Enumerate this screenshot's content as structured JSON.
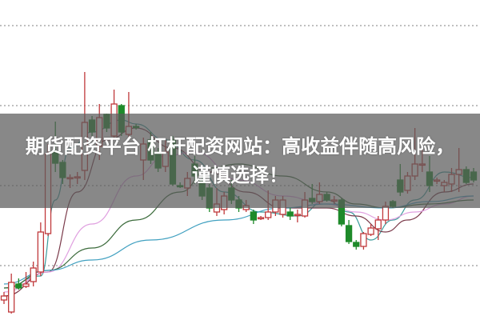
{
  "headline": {
    "line1": "期货配资平台 杠杆配资网站：高收益伴随高风险，",
    "line2": "谨慎选择！"
  },
  "chart_data": {
    "type": "candlestick",
    "title": "",
    "xlabel": "",
    "ylabel": "",
    "ylim": [
      0,
      400
    ],
    "grid": true,
    "gridlines": [
      68,
      168,
      268,
      368
    ],
    "colors": {
      "up": "#c0393b",
      "down": "#1e8a2a",
      "grid": "#999999"
    },
    "candles": [
      [
        25,
        30,
        35,
        20
      ],
      [
        10,
        47,
        58,
        8
      ],
      [
        45,
        40,
        52,
        38
      ],
      [
        42,
        45,
        60,
        40
      ],
      [
        48,
        65,
        73,
        42
      ],
      [
        60,
        110,
        122,
        55
      ],
      [
        108,
        208,
        220,
        105
      ],
      [
        210,
        196,
        248,
        185
      ],
      [
        197,
        178,
        200,
        170
      ],
      [
        178,
        178,
        182,
        165
      ],
      [
        178,
        179,
        185,
        170
      ],
      [
        187,
        247,
        310,
        175
      ],
      [
        250,
        235,
        255,
        230
      ],
      [
        217,
        253,
        270,
        200
      ],
      [
        257,
        240,
        258,
        235
      ],
      [
        230,
        270,
        288,
        225
      ],
      [
        268,
        235,
        270,
        230
      ],
      [
        232,
        242,
        285,
        225
      ],
      [
        242,
        241,
        245,
        238
      ],
      [
        200,
        220,
        228,
        175
      ],
      [
        225,
        200,
        235,
        195
      ],
      [
        210,
        190,
        215,
        185
      ],
      [
        192,
        210,
        225,
        185
      ],
      [
        225,
        170,
        230,
        168
      ],
      [
        168,
        167,
        172,
        165
      ],
      [
        165,
        177,
        185,
        155
      ],
      [
        195,
        180,
        205,
        170
      ],
      [
        175,
        155,
        180,
        150
      ],
      [
        165,
        140,
        170,
        135
      ],
      [
        135,
        145,
        165,
        130
      ],
      [
        138,
        155,
        160,
        132
      ],
      [
        165,
        150,
        175,
        145
      ],
      [
        150,
        140,
        155,
        135
      ],
      [
        138,
        143,
        150,
        135
      ],
      [
        135,
        125,
        138,
        120
      ],
      [
        128,
        128,
        130,
        125
      ],
      [
        128,
        135,
        162,
        125
      ],
      [
        135,
        150,
        155,
        130
      ],
      [
        132,
        150,
        155,
        128
      ],
      [
        135,
        130,
        140,
        125
      ],
      [
        132,
        132,
        138,
        122
      ],
      [
        130,
        150,
        160,
        128
      ],
      [
        152,
        148,
        170,
        145
      ],
      [
        148,
        157,
        172,
        145
      ],
      [
        157,
        150,
        160,
        148
      ],
      [
        150,
        150,
        155,
        145
      ],
      [
        150,
        120,
        152,
        117
      ],
      [
        118,
        98,
        125,
        95
      ],
      [
        97,
        92,
        100,
        88
      ],
      [
        92,
        108,
        110,
        88
      ],
      [
        107,
        115,
        120,
        105
      ],
      [
        114,
        125,
        130,
        100
      ],
      [
        125,
        142,
        148,
        120
      ],
      [
        148,
        142,
        150,
        140
      ],
      [
        175,
        160,
        195,
        155
      ],
      [
        162,
        180,
        185,
        158
      ],
      [
        180,
        195,
        240,
        175
      ],
      [
        195,
        195,
        220,
        185
      ],
      [
        185,
        168,
        205,
        160
      ],
      [
        175,
        175,
        178,
        170
      ],
      [
        168,
        172,
        175,
        160
      ],
      [
        170,
        182,
        190,
        160
      ],
      [
        182,
        188,
        215,
        160
      ],
      [
        188,
        172,
        192,
        170
      ],
      [
        185,
        175,
        190,
        172
      ]
    ],
    "candle_fields": [
      "open",
      "close",
      "high",
      "low"
    ],
    "moving_averages": [
      {
        "color": "#3a9a9a",
        "points": [
          [
            0,
            40
          ],
          [
            5,
            55
          ],
          [
            7,
            150
          ],
          [
            9,
            215
          ],
          [
            12,
            235
          ],
          [
            16,
            250
          ],
          [
            18,
            245
          ],
          [
            22,
            225
          ],
          [
            26,
            200
          ],
          [
            30,
            160
          ],
          [
            35,
            135
          ],
          [
            40,
            130
          ],
          [
            44,
            150
          ],
          [
            47,
            135
          ],
          [
            50,
            100
          ],
          [
            53,
            125
          ],
          [
            56,
            150
          ],
          [
            60,
            185
          ],
          [
            64,
            178
          ]
        ]
      },
      {
        "color": "#7a3a4a",
        "points": [
          [
            0,
            30
          ],
          [
            6,
            60
          ],
          [
            10,
            160
          ],
          [
            14,
            225
          ],
          [
            18,
            240
          ],
          [
            23,
            215
          ],
          [
            28,
            185
          ],
          [
            33,
            160
          ],
          [
            38,
            140
          ],
          [
            44,
            140
          ],
          [
            48,
            130
          ],
          [
            52,
            110
          ],
          [
            55,
            125
          ],
          [
            60,
            160
          ],
          [
            64,
            170
          ]
        ]
      },
      {
        "color": "#e0a0e0",
        "points": [
          [
            0,
            35
          ],
          [
            6,
            60
          ],
          [
            12,
            120
          ],
          [
            18,
            180
          ],
          [
            22,
            205
          ],
          [
            26,
            210
          ],
          [
            32,
            175
          ],
          [
            38,
            155
          ],
          [
            44,
            145
          ],
          [
            48,
            135
          ],
          [
            52,
            125
          ],
          [
            56,
            135
          ],
          [
            60,
            145
          ],
          [
            64,
            155
          ]
        ]
      },
      {
        "color": "#3a6a3a",
        "points": [
          [
            0,
            40
          ],
          [
            6,
            62
          ],
          [
            12,
            90
          ],
          [
            18,
            125
          ],
          [
            24,
            160
          ],
          [
            28,
            190
          ],
          [
            32,
            195
          ],
          [
            38,
            180
          ],
          [
            44,
            160
          ],
          [
            48,
            145
          ],
          [
            52,
            140
          ],
          [
            58,
            145
          ],
          [
            64,
            150
          ]
        ]
      },
      {
        "color": "#40a0c0",
        "points": [
          [
            0,
            45
          ],
          [
            6,
            62
          ],
          [
            12,
            75
          ],
          [
            20,
            100
          ],
          [
            30,
            125
          ],
          [
            38,
            140
          ],
          [
            44,
            145
          ],
          [
            52,
            140
          ],
          [
            58,
            148
          ],
          [
            64,
            155
          ]
        ]
      }
    ]
  }
}
